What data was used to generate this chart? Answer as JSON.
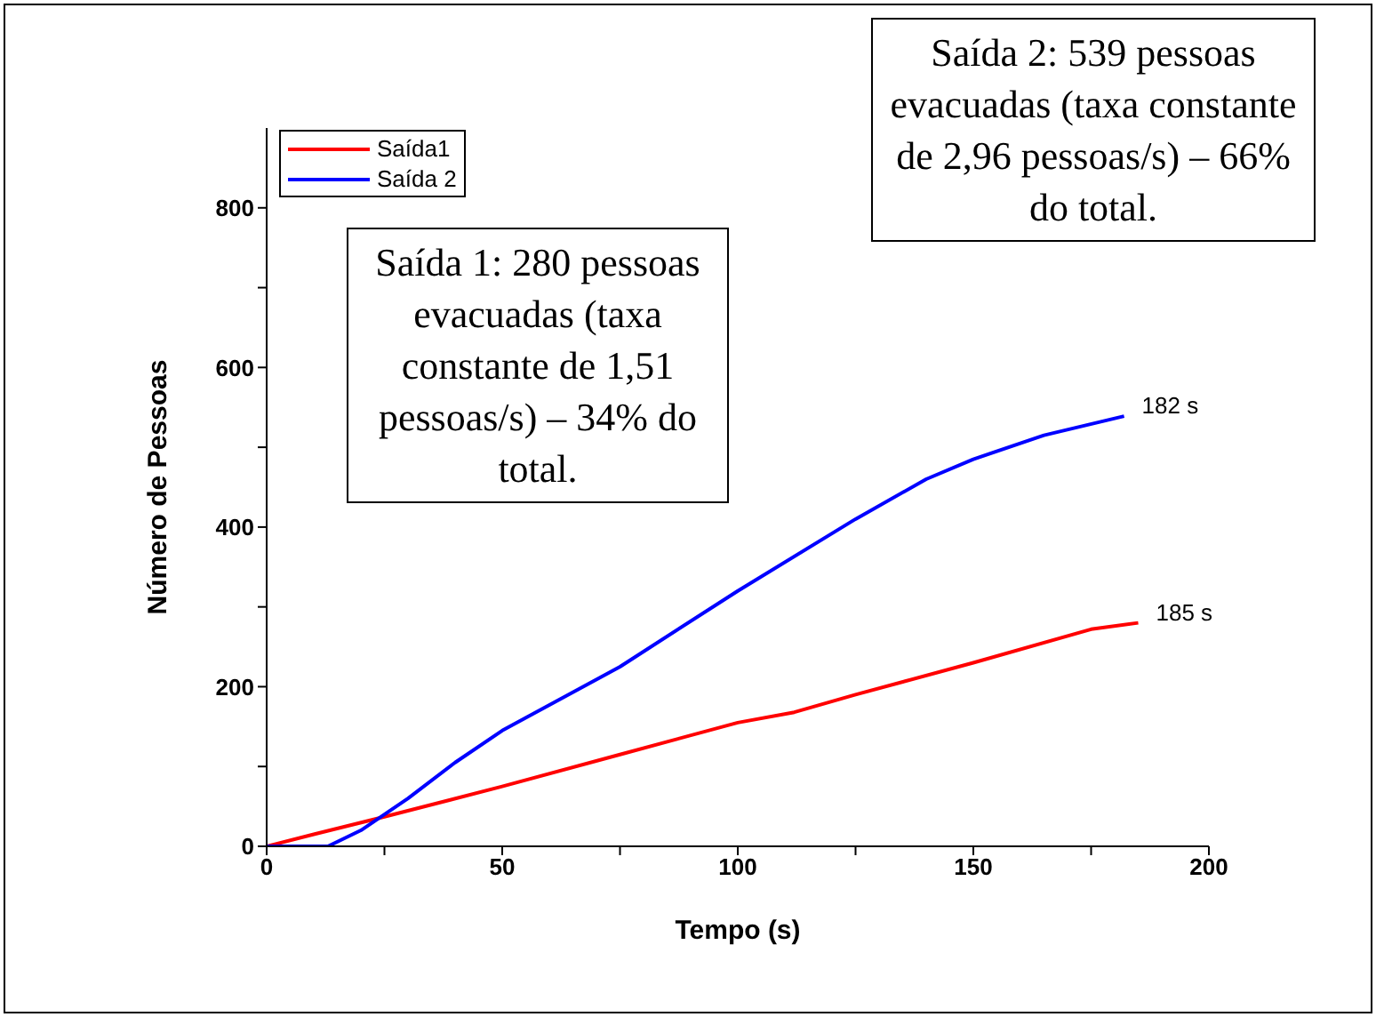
{
  "chart_data": {
    "type": "line",
    "xlabel": "Tempo (s)",
    "ylabel": "Número de Pessoas",
    "xlim": [
      0,
      200
    ],
    "ylim": [
      0,
      900
    ],
    "xticks": [
      0,
      {
        "value": 25,
        "label": null
      },
      50,
      {
        "value": 75,
        "label": null
      },
      100,
      {
        "value": 125,
        "label": null
      },
      150,
      {
        "value": 175,
        "label": null
      },
      200
    ],
    "yticks": [
      0,
      {
        "value": 100,
        "label": null
      },
      200,
      {
        "value": 300,
        "label": null
      },
      400,
      {
        "value": 500,
        "label": null
      },
      600,
      {
        "value": 700,
        "label": null
      },
      800
    ],
    "legend": "top left",
    "grid": false,
    "marker": "none",
    "line_style": "solid",
    "series": [
      {
        "name": "Saída1",
        "color": "#ff0000",
        "x": [
          0,
          10,
          25,
          50,
          75,
          100,
          112,
          125,
          150,
          175,
          185
        ],
        "values": [
          0,
          15,
          37,
          75,
          115,
          155,
          168,
          190,
          230,
          272,
          280
        ]
      },
      {
        "name": "Saída 2",
        "color": "#0000ff",
        "x": [
          0,
          13,
          20,
          25,
          30,
          40,
          50,
          75,
          100,
          125,
          140,
          150,
          165,
          182
        ],
        "values": [
          0,
          0,
          20,
          40,
          60,
          105,
          145,
          225,
          320,
          410,
          460,
          485,
          515,
          539
        ]
      }
    ],
    "annotations": [
      "Saída 1: 280 pessoas evacuadas (taxa constante de 1,51 pessoas/s) – 34% do total.",
      "Saída 2: 539 pessoas evacuadas (taxa constante de 2,96 pessoas/s) – 66% do total.",
      {
        "text": "182 s",
        "x": 182,
        "y": 539
      },
      {
        "text": "185 s",
        "x": 185,
        "y": 280
      }
    ]
  }
}
